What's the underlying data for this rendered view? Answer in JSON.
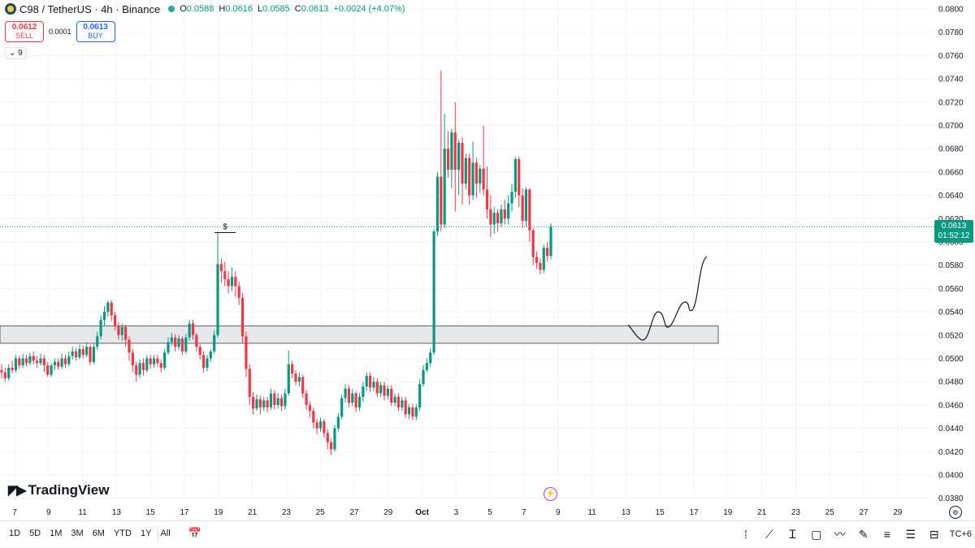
{
  "header": {
    "title": "C98 / TetherUS · 4h · Binance",
    "o_label": "O",
    "o_value": "0.0588",
    "h_label": "H",
    "h_value": "0.0616",
    "l_label": "L",
    "l_value": "0.0585",
    "c_label": "C",
    "c_value": "0.0613",
    "change": "+0.0024 (+4.07%)"
  },
  "trade": {
    "sell_price": "0.0612",
    "sell_label": "SELL",
    "spread": "0.0001",
    "buy_price": "0.0613",
    "buy_label": "BUY"
  },
  "indicators_count": "9",
  "brand": "TradingView",
  "current_price": {
    "value": "0.0613",
    "countdown": "01:52:12"
  },
  "range_buttons": [
    "1D",
    "5D",
    "1M",
    "3M",
    "6M",
    "YTD",
    "1Y",
    "All"
  ],
  "timezone": "TC+6",
  "colors": {
    "up": "#089981",
    "down": "#f23645",
    "accent": "#2962ff"
  },
  "chart_data": {
    "type": "candlestick",
    "ylim": [
      0.037,
      0.08
    ],
    "y_ticks": [
      "0.0800",
      "0.0780",
      "0.0760",
      "0.0740",
      "0.0720",
      "0.0700",
      "0.0680",
      "0.0660",
      "0.0640",
      "0.0620",
      "0.0600",
      "0.0580",
      "0.0560",
      "0.0540",
      "0.0520",
      "0.0500",
      "0.0480",
      "0.0460",
      "0.0440",
      "0.0420",
      "0.0400",
      "0.0380"
    ],
    "x_ticks": [
      "7",
      "9",
      "11",
      "13",
      "15",
      "17",
      "19",
      "21",
      "23",
      "25",
      "27",
      "29",
      "Oct",
      "3",
      "5",
      "7",
      "9",
      "11",
      "13",
      "15",
      "17",
      "19",
      "21",
      "23",
      "25",
      "27",
      "29"
    ],
    "support_zone": [
      0.0513,
      0.0528
    ],
    "annotation": "$",
    "annotation_level": 0.0608,
    "current_price_level": 0.0613,
    "candles": [
      [
        0.049,
        0.0488,
        0.0495,
        0.0483
      ],
      [
        0.0488,
        0.0483,
        0.0492,
        0.048
      ],
      [
        0.0483,
        0.0492,
        0.0495,
        0.0481
      ],
      [
        0.0492,
        0.049,
        0.0498,
        0.0487
      ],
      [
        0.049,
        0.05,
        0.0503,
        0.0488
      ],
      [
        0.05,
        0.0494,
        0.0502,
        0.0491
      ],
      [
        0.0494,
        0.05,
        0.0504,
        0.0492
      ],
      [
        0.05,
        0.0496,
        0.0503,
        0.0493
      ],
      [
        0.0496,
        0.0502,
        0.0505,
        0.0494
      ],
      [
        0.0502,
        0.0498,
        0.0506,
        0.0495
      ],
      [
        0.0498,
        0.0496,
        0.0502,
        0.0492
      ],
      [
        0.0496,
        0.05,
        0.0504,
        0.0494
      ],
      [
        0.05,
        0.0494,
        0.0503,
        0.0488
      ],
      [
        0.0494,
        0.0486,
        0.0497,
        0.0484
      ],
      [
        0.0486,
        0.0494,
        0.0496,
        0.0484
      ],
      [
        0.0494,
        0.0497,
        0.05,
        0.049
      ],
      [
        0.0497,
        0.0493,
        0.05,
        0.049
      ],
      [
        0.0493,
        0.05,
        0.0504,
        0.0491
      ],
      [
        0.05,
        0.0495,
        0.0503,
        0.0492
      ],
      [
        0.0495,
        0.0502,
        0.0506,
        0.0493
      ],
      [
        0.0502,
        0.0506,
        0.051,
        0.0499
      ],
      [
        0.0506,
        0.0501,
        0.0509,
        0.0498
      ],
      [
        0.0501,
        0.0508,
        0.0512,
        0.0499
      ],
      [
        0.0508,
        0.0503,
        0.0511,
        0.05
      ],
      [
        0.0503,
        0.051,
        0.0514,
        0.0501
      ],
      [
        0.051,
        0.0497,
        0.0512,
        0.0494
      ],
      [
        0.0497,
        0.051,
        0.0513,
        0.0495
      ],
      [
        0.051,
        0.0519,
        0.0523,
        0.0507
      ],
      [
        0.0519,
        0.0533,
        0.0537,
        0.0516
      ],
      [
        0.0533,
        0.054,
        0.0545,
        0.0528
      ],
      [
        0.054,
        0.0548,
        0.055,
        0.0536
      ],
      [
        0.0548,
        0.0537,
        0.055,
        0.0532
      ],
      [
        0.0537,
        0.0528,
        0.054,
        0.0524
      ],
      [
        0.0528,
        0.052,
        0.0531,
        0.0516
      ],
      [
        0.052,
        0.0527,
        0.053,
        0.0515
      ],
      [
        0.0527,
        0.0516,
        0.0529,
        0.051
      ],
      [
        0.0516,
        0.0505,
        0.0519,
        0.0498
      ],
      [
        0.0505,
        0.0494,
        0.0508,
        0.0488
      ],
      [
        0.0494,
        0.0486,
        0.0497,
        0.048
      ],
      [
        0.0486,
        0.0496,
        0.0499,
        0.0483
      ],
      [
        0.0496,
        0.049,
        0.05,
        0.0485
      ],
      [
        0.049,
        0.05,
        0.0503,
        0.0488
      ],
      [
        0.05,
        0.0495,
        0.0503,
        0.0491
      ],
      [
        0.0495,
        0.05,
        0.0503,
        0.0492
      ],
      [
        0.05,
        0.0496,
        0.0503,
        0.0493
      ],
      [
        0.0496,
        0.0492,
        0.0499,
        0.0488
      ],
      [
        0.0492,
        0.0505,
        0.0508,
        0.049
      ],
      [
        0.0505,
        0.0514,
        0.0518,
        0.0503
      ],
      [
        0.0514,
        0.0518,
        0.0522,
        0.0511
      ],
      [
        0.0518,
        0.051,
        0.0521,
        0.0506
      ],
      [
        0.051,
        0.0517,
        0.052,
        0.0507
      ],
      [
        0.0517,
        0.0506,
        0.0519,
        0.0503
      ],
      [
        0.0506,
        0.0518,
        0.0521,
        0.0504
      ],
      [
        0.0518,
        0.053,
        0.0533,
        0.0515
      ],
      [
        0.053,
        0.052,
        0.0533,
        0.0516
      ],
      [
        0.052,
        0.051,
        0.0522,
        0.0506
      ],
      [
        0.051,
        0.0503,
        0.0512,
        0.0499
      ],
      [
        0.0503,
        0.0492,
        0.0506,
        0.0488
      ],
      [
        0.0492,
        0.05,
        0.0503,
        0.0489
      ],
      [
        0.05,
        0.0506,
        0.0508,
        0.0497
      ],
      [
        0.0506,
        0.052,
        0.0524,
        0.0504
      ],
      [
        0.052,
        0.0581,
        0.0608,
        0.0518
      ],
      [
        0.0581,
        0.0575,
        0.0586,
        0.0565
      ],
      [
        0.0575,
        0.0568,
        0.0583,
        0.0562
      ],
      [
        0.0568,
        0.0562,
        0.0575,
        0.0556
      ],
      [
        0.0562,
        0.057,
        0.0578,
        0.0558
      ],
      [
        0.057,
        0.0562,
        0.0575,
        0.0553
      ],
      [
        0.0562,
        0.0552,
        0.0566,
        0.0546
      ],
      [
        0.0552,
        0.0519,
        0.0556,
        0.0513
      ],
      [
        0.0519,
        0.0491,
        0.0523,
        0.0484
      ],
      [
        0.0491,
        0.0467,
        0.0495,
        0.046
      ],
      [
        0.0467,
        0.0457,
        0.0471,
        0.0452
      ],
      [
        0.0457,
        0.0465,
        0.0469,
        0.0455
      ],
      [
        0.0465,
        0.0458,
        0.0468,
        0.0452
      ],
      [
        0.0458,
        0.0464,
        0.0467,
        0.0455
      ],
      [
        0.0464,
        0.0458,
        0.0467,
        0.0454
      ],
      [
        0.0458,
        0.047,
        0.0474,
        0.0456
      ],
      [
        0.047,
        0.046,
        0.0473,
        0.0456
      ],
      [
        0.046,
        0.0466,
        0.047,
        0.0457
      ],
      [
        0.0466,
        0.0459,
        0.0469,
        0.0455
      ],
      [
        0.0459,
        0.047,
        0.0474,
        0.0456
      ],
      [
        0.047,
        0.0495,
        0.0507,
        0.0468
      ],
      [
        0.0495,
        0.0487,
        0.0498,
        0.0483
      ],
      [
        0.0487,
        0.048,
        0.049,
        0.0477
      ],
      [
        0.048,
        0.0484,
        0.0488,
        0.0476
      ],
      [
        0.0484,
        0.047,
        0.0486,
        0.0466
      ],
      [
        0.047,
        0.046,
        0.0473,
        0.0456
      ],
      [
        0.046,
        0.0455,
        0.0463,
        0.0449
      ],
      [
        0.0455,
        0.0445,
        0.0458,
        0.044
      ],
      [
        0.0445,
        0.044,
        0.0448,
        0.0435
      ],
      [
        0.044,
        0.0446,
        0.0449,
        0.0437
      ],
      [
        0.0446,
        0.0436,
        0.0448,
        0.0432
      ],
      [
        0.0436,
        0.0428,
        0.0439,
        0.0422
      ],
      [
        0.0428,
        0.0422,
        0.0431,
        0.0417
      ],
      [
        0.0422,
        0.044,
        0.0443,
        0.042
      ],
      [
        0.044,
        0.045,
        0.0453,
        0.0437
      ],
      [
        0.045,
        0.0466,
        0.0469,
        0.0448
      ],
      [
        0.0466,
        0.0474,
        0.0478,
        0.0462
      ],
      [
        0.0474,
        0.0462,
        0.0477,
        0.0458
      ],
      [
        0.0462,
        0.047,
        0.0474,
        0.0459
      ],
      [
        0.047,
        0.0458,
        0.0472,
        0.0454
      ],
      [
        0.0458,
        0.0467,
        0.047,
        0.0455
      ],
      [
        0.0467,
        0.0476,
        0.048,
        0.0463
      ],
      [
        0.0476,
        0.0485,
        0.0488,
        0.0472
      ],
      [
        0.0485,
        0.0475,
        0.0488,
        0.0471
      ],
      [
        0.0475,
        0.048,
        0.0484,
        0.0472
      ],
      [
        0.048,
        0.047,
        0.0483,
        0.0467
      ],
      [
        0.047,
        0.0477,
        0.048,
        0.0467
      ],
      [
        0.0477,
        0.0468,
        0.048,
        0.0464
      ],
      [
        0.0468,
        0.0474,
        0.0477,
        0.0465
      ],
      [
        0.0474,
        0.0462,
        0.0477,
        0.0459
      ],
      [
        0.0462,
        0.0467,
        0.047,
        0.0459
      ],
      [
        0.0467,
        0.0458,
        0.047,
        0.0455
      ],
      [
        0.0458,
        0.0464,
        0.0467,
        0.0455
      ],
      [
        0.0464,
        0.0452,
        0.0467,
        0.0449
      ],
      [
        0.0452,
        0.0458,
        0.0461,
        0.0448
      ],
      [
        0.0458,
        0.045,
        0.0461,
        0.0447
      ],
      [
        0.045,
        0.0458,
        0.0461,
        0.0447
      ],
      [
        0.0458,
        0.0478,
        0.0482,
        0.0455
      ],
      [
        0.0478,
        0.049,
        0.0494,
        0.0476
      ],
      [
        0.049,
        0.0496,
        0.05,
        0.0488
      ],
      [
        0.0496,
        0.0505,
        0.0509,
        0.0493
      ],
      [
        0.0505,
        0.0609,
        0.0611,
        0.0503
      ],
      [
        0.0609,
        0.0656,
        0.066,
        0.0605
      ],
      [
        0.0656,
        0.0615,
        0.0747,
        0.0609
      ],
      [
        0.0615,
        0.068,
        0.071,
        0.0612
      ],
      [
        0.068,
        0.0662,
        0.0695,
        0.0655
      ],
      [
        0.0662,
        0.0694,
        0.0697,
        0.0646
      ],
      [
        0.0694,
        0.0662,
        0.072,
        0.0626
      ],
      [
        0.0662,
        0.0685,
        0.0688,
        0.064
      ],
      [
        0.0685,
        0.065,
        0.069,
        0.0632
      ],
      [
        0.065,
        0.0672,
        0.0676,
        0.0645
      ],
      [
        0.0672,
        0.064,
        0.0676,
        0.0632
      ],
      [
        0.064,
        0.0668,
        0.0686,
        0.0636
      ],
      [
        0.0668,
        0.065,
        0.0672,
        0.0638
      ],
      [
        0.065,
        0.0663,
        0.0666,
        0.0642
      ],
      [
        0.0663,
        0.0645,
        0.07,
        0.064
      ],
      [
        0.0645,
        0.0628,
        0.0665,
        0.062
      ],
      [
        0.0628,
        0.0615,
        0.064,
        0.0604
      ],
      [
        0.0615,
        0.0625,
        0.063,
        0.0607
      ],
      [
        0.0625,
        0.0616,
        0.0628,
        0.0609
      ],
      [
        0.0616,
        0.0628,
        0.0632,
        0.0613
      ],
      [
        0.0628,
        0.062,
        0.0636,
        0.0615
      ],
      [
        0.062,
        0.0633,
        0.064,
        0.0615
      ],
      [
        0.0633,
        0.0643,
        0.065,
        0.0626
      ],
      [
        0.0643,
        0.0671,
        0.0673,
        0.0638
      ],
      [
        0.0671,
        0.064,
        0.0673,
        0.063
      ],
      [
        0.064,
        0.0618,
        0.0646,
        0.0612
      ],
      [
        0.0618,
        0.0645,
        0.0647,
        0.0613
      ],
      [
        0.0645,
        0.061,
        0.0646,
        0.06
      ],
      [
        0.061,
        0.0587,
        0.0612,
        0.058
      ],
      [
        0.0587,
        0.0582,
        0.0592,
        0.0577
      ],
      [
        0.0582,
        0.0576,
        0.0586,
        0.0572
      ],
      [
        0.0576,
        0.0595,
        0.0598,
        0.0573
      ],
      [
        0.0595,
        0.0588,
        0.06,
        0.0583
      ],
      [
        0.0588,
        0.0613,
        0.0616,
        0.0585
      ]
    ]
  }
}
